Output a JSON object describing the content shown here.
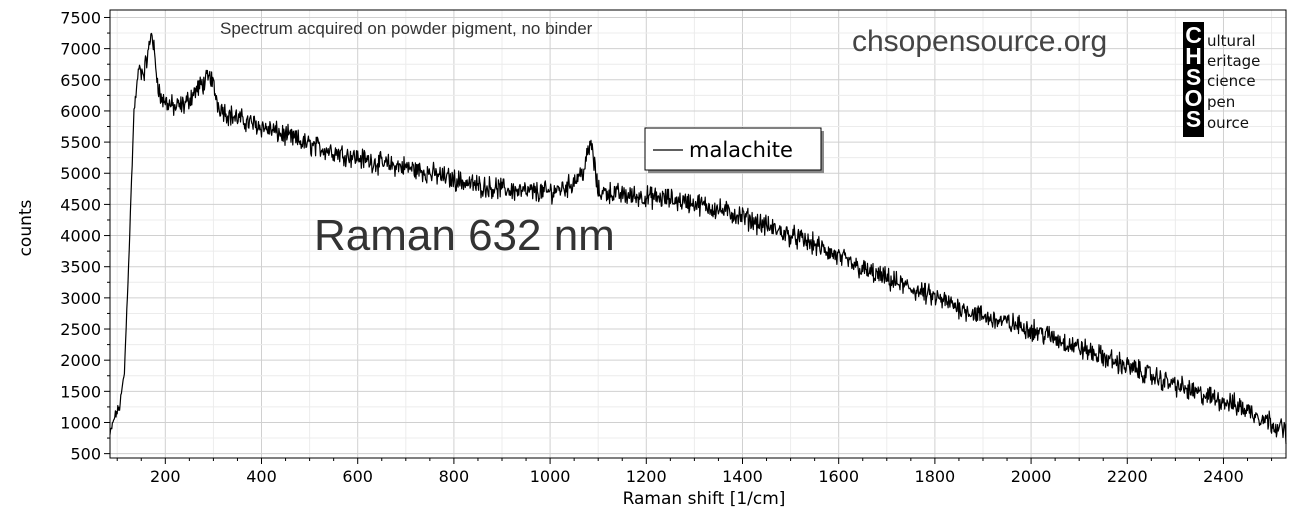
{
  "chart_data": {
    "type": "line",
    "subtitle": "Spectrum acquired on powder pigment, no binder",
    "annotation": "Raman 632 nm",
    "watermark": "chsopensource.org",
    "xlabel": "Raman shift [1/cm]",
    "ylabel": "counts",
    "xlim": [
      85,
      2530
    ],
    "ylim": [
      430,
      7620
    ],
    "xticks": [
      200,
      400,
      600,
      800,
      1000,
      1200,
      1400,
      1600,
      1800,
      2000,
      2200,
      2400
    ],
    "yticks": [
      500,
      1000,
      1500,
      2000,
      2500,
      3000,
      3500,
      4000,
      4500,
      5000,
      5500,
      6000,
      6500,
      7000,
      7500
    ],
    "grid": true,
    "legend_position": "top-center",
    "series": [
      {
        "name": "malachite",
        "color": "#000000",
        "x": [
          85,
          95,
          105,
          115,
          125,
          135,
          145,
          155,
          165,
          172,
          180,
          190,
          200,
          220,
          240,
          260,
          280,
          295,
          310,
          330,
          360,
          400,
          450,
          500,
          550,
          600,
          650,
          700,
          750,
          800,
          850,
          900,
          950,
          1000,
          1040,
          1070,
          1085,
          1100,
          1120,
          1150,
          1200,
          1250,
          1300,
          1350,
          1400,
          1450,
          1500,
          1550,
          1600,
          1650,
          1700,
          1750,
          1800,
          1850,
          1900,
          1950,
          2000,
          2050,
          2100,
          2150,
          2200,
          2250,
          2300,
          2350,
          2400,
          2450,
          2500,
          2530
        ],
        "y": [
          800,
          1100,
          1250,
          1800,
          3800,
          6000,
          6700,
          6600,
          6950,
          7300,
          6700,
          6200,
          6150,
          6050,
          6100,
          6300,
          6450,
          6550,
          6100,
          5950,
          5850,
          5750,
          5600,
          5450,
          5350,
          5250,
          5150,
          5100,
          5000,
          4900,
          4800,
          4750,
          4700,
          4700,
          4800,
          5050,
          5500,
          4700,
          4700,
          4650,
          4620,
          4580,
          4520,
          4420,
          4300,
          4150,
          4000,
          3850,
          3650,
          3450,
          3300,
          3150,
          3000,
          2850,
          2700,
          2600,
          2500,
          2350,
          2200,
          2050,
          1900,
          1750,
          1600,
          1450,
          1350,
          1200,
          1000,
          850
        ]
      }
    ]
  },
  "logo": {
    "letters": [
      "C",
      "H",
      "S",
      "O",
      "S"
    ],
    "words": [
      "ultural",
      "eritage",
      "cience",
      "pen",
      "ource"
    ]
  }
}
